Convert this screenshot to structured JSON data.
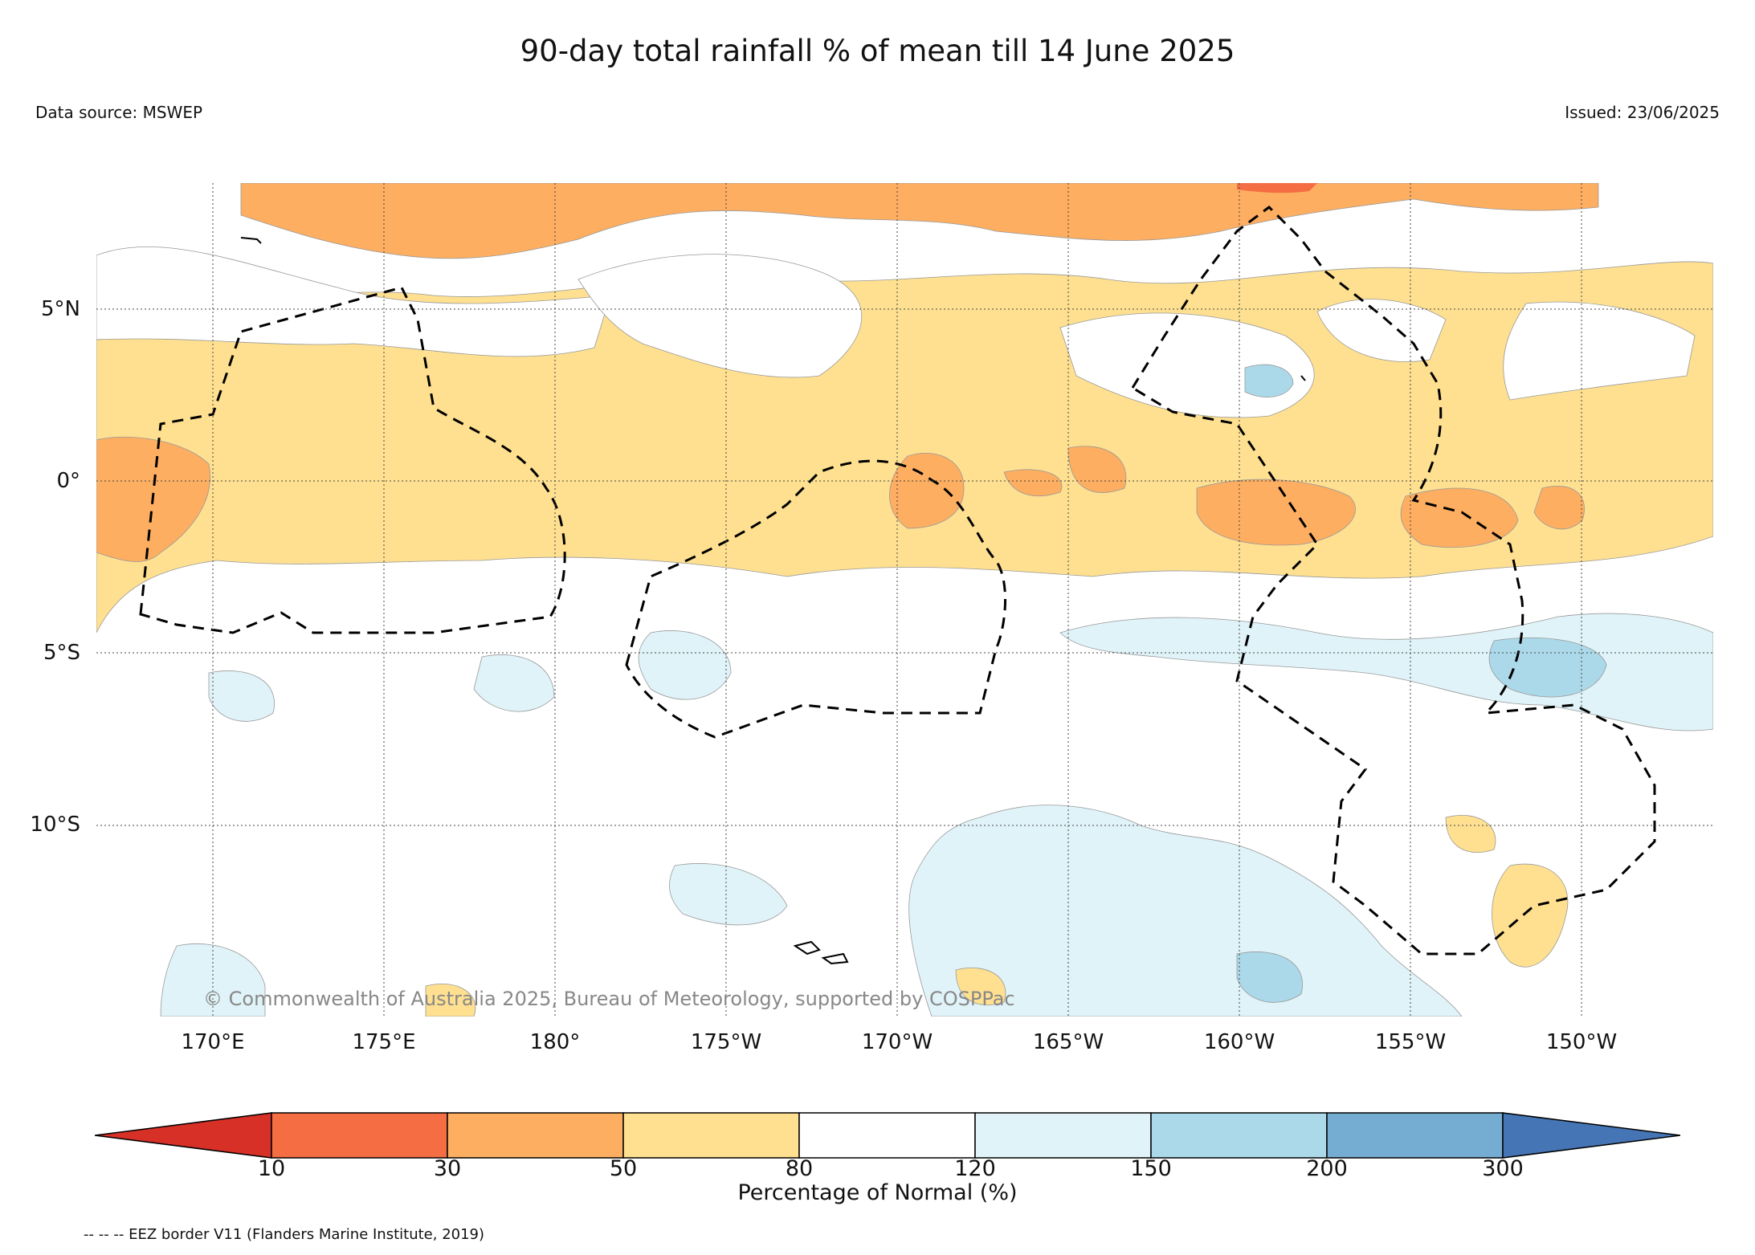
{
  "title": "90-day total rainfall % of mean till 14 June 2025",
  "data_source": "Data source: MSWEP",
  "issued": "Issued: 23/06/2025",
  "copyright": "© Commonwealth of Australia 2025, Bureau of Meteorology, supported by COSPPac",
  "eez_note": "-- -- -- EEZ border V11 (Flanders Marine Institute, 2019)",
  "map": {
    "lat_ticks": [
      {
        "label": "5°N",
        "lat": 5
      },
      {
        "label": "0°",
        "lat": 0
      },
      {
        "label": "5°S",
        "lat": -5
      },
      {
        "label": "10°S",
        "lat": -10
      }
    ],
    "lon_ticks": [
      {
        "label": "170°E",
        "lon": 170
      },
      {
        "label": "175°E",
        "lon": 175
      },
      {
        "label": "180°",
        "lon": 180
      },
      {
        "label": "175°W",
        "lon": 185
      },
      {
        "label": "170°W",
        "lon": 190
      },
      {
        "label": "165°W",
        "lon": 195
      },
      {
        "label": "160°W",
        "lon": 200
      },
      {
        "label": "155°W",
        "lon": 205
      },
      {
        "label": "150°W",
        "lon": 210
      }
    ],
    "extent": {
      "lon_min": 166.9,
      "lon_max": 214.1,
      "lat_min": -15.9,
      "lat_max": 8.8
    }
  },
  "colorbar": {
    "title": "Percentage of Normal (%)",
    "boundaries": [
      "10",
      "30",
      "50",
      "80",
      "120",
      "150",
      "200",
      "300"
    ],
    "colors": [
      "#d73027",
      "#f46d43",
      "#fdae61",
      "#fee090",
      "#ffffff",
      "#e0f3f8",
      "#abd9e9",
      "#74add1",
      "#4575b4"
    ]
  },
  "legend_colors": {
    "very_dry": "#f46d43",
    "dry": "#fdae61",
    "below": "#fee090",
    "normal": "#ffffff",
    "above": "#e0f3f8",
    "wet": "#abd9e9",
    "very_wet": "#74add1"
  }
}
